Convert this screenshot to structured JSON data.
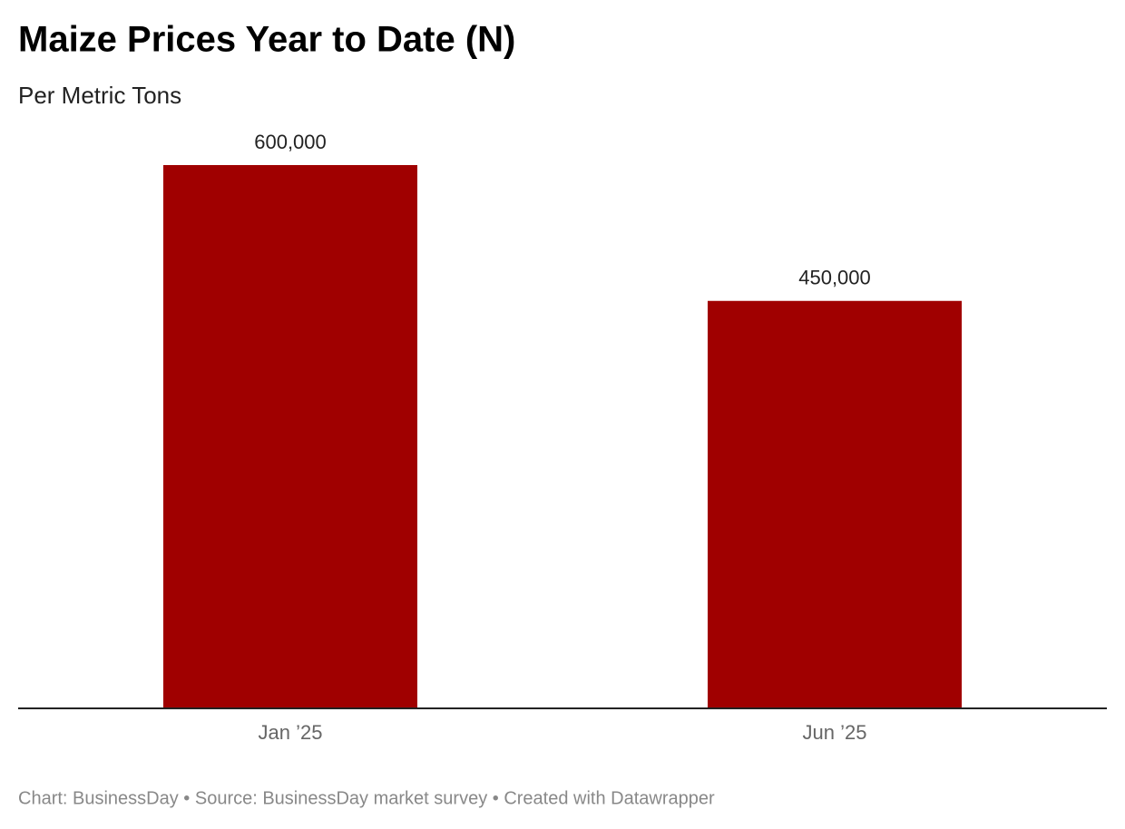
{
  "chart_data": {
    "type": "bar",
    "title": "Maize Prices Year to Date (N)",
    "subtitle": "Per Metric Tons",
    "categories": [
      "Jan ’25",
      "Jun ’25"
    ],
    "values": [
      600000,
      450000
    ],
    "value_labels": [
      "600,000",
      "450,000"
    ],
    "color": "#a00000",
    "ylim": [
      0,
      600000
    ],
    "source": "Chart: BusinessDay • Source: BusinessDay market survey • Created with Datawrapper"
  }
}
